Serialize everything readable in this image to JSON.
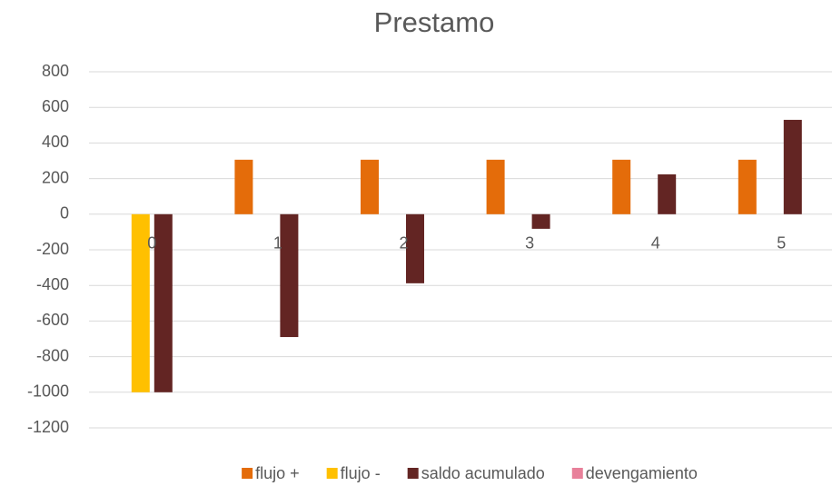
{
  "chart_data": {
    "type": "bar",
    "title": "Prestamo",
    "categories": [
      "0",
      "1",
      "2",
      "3",
      "4",
      "5"
    ],
    "series": [
      {
        "name": "flujo +",
        "color": "#e46c0a",
        "values": [
          null,
          306,
          306,
          306,
          306,
          306
        ]
      },
      {
        "name": "flujo -",
        "color": "#ffc000",
        "values": [
          -1000,
          null,
          null,
          null,
          null,
          null
        ]
      },
      {
        "name": "saldo acumulado",
        "color": "#632523",
        "values": [
          -1000,
          -690,
          -388,
          -82,
          224,
          530
        ]
      },
      {
        "name": "devengamiento",
        "color": "#e8809a",
        "values": [
          null,
          null,
          null,
          null,
          null,
          null
        ]
      }
    ],
    "ylim": [
      -1200,
      800
    ],
    "yticks": [
      -1200,
      -1000,
      -800,
      -600,
      -400,
      -200,
      0,
      200,
      400,
      600,
      800
    ],
    "grid": true,
    "legend": "bottom"
  }
}
